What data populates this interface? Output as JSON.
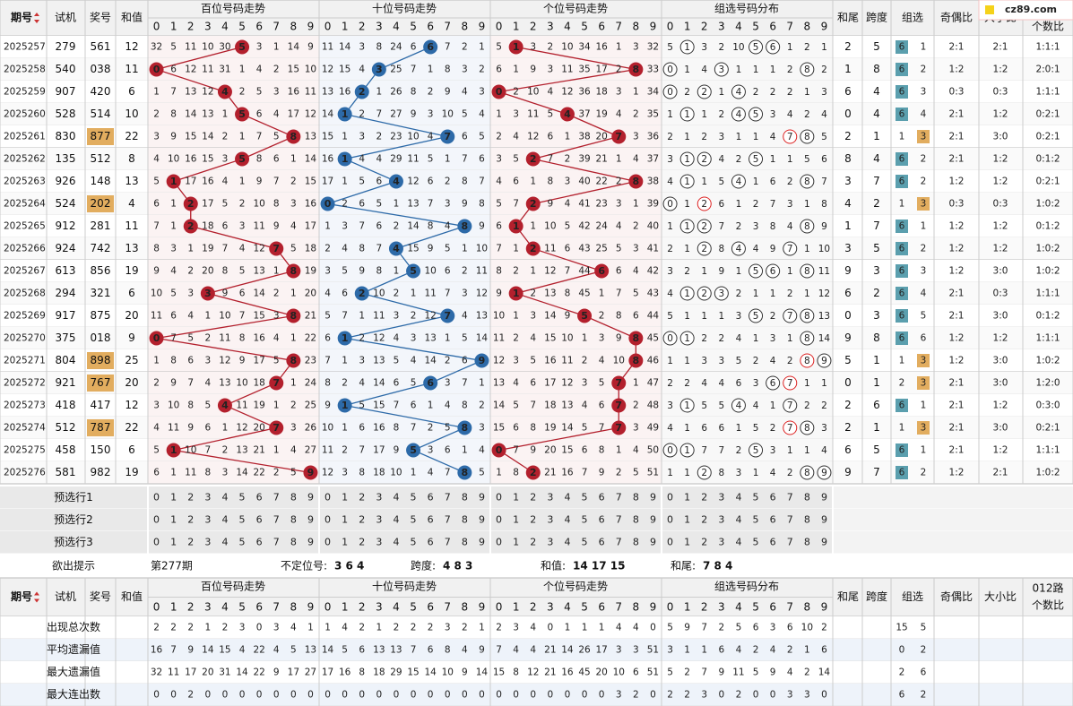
{
  "logo": "cz89.com",
  "header": {
    "period": "期号",
    "trial": "试机",
    "prize": "奖号",
    "sum": "和值",
    "hundreds": "百位号码走势",
    "tens": "十位号码走势",
    "units": "个位号码走势",
    "group": "组选号码分布",
    "tail": "和尾",
    "span": "跨度",
    "grp": "组选",
    "odd_even": "奇偶比",
    "big_small": "大小比",
    "route1": "012路",
    "route2": "个数比"
  },
  "digits": [
    0,
    1,
    2,
    3,
    4,
    5,
    6,
    7,
    8,
    9
  ],
  "rows": [
    {
      "period": "2025257",
      "trial": "279",
      "prize": "561",
      "sum": 12,
      "hundreds": [
        32,
        5,
        11,
        10,
        30,
        5,
        3,
        1,
        14,
        9
      ],
      "tens": [
        11,
        14,
        3,
        8,
        24,
        6,
        6,
        7,
        2,
        1
      ],
      "units": [
        5,
        1,
        3,
        2,
        10,
        34,
        16,
        1,
        3,
        32
      ],
      "group": [
        5,
        1,
        3,
        2,
        10,
        5,
        6,
        1,
        2,
        1
      ],
      "tail": 2,
      "span": 5,
      "g6": 6,
      "g3": 1,
      "odd_even": "2:1",
      "big_small": "2:1",
      "route": "1:1:1"
    },
    {
      "period": "2025258",
      "trial": "540",
      "prize": "038",
      "sum": 11,
      "hundreds": [
        0,
        6,
        12,
        11,
        31,
        1,
        4,
        2,
        15,
        10
      ],
      "tens": [
        12,
        15,
        4,
        3,
        25,
        7,
        1,
        8,
        3,
        2
      ],
      "units": [
        6,
        1,
        9,
        3,
        11,
        35,
        17,
        2,
        8,
        33
      ],
      "group": [
        0,
        1,
        4,
        3,
        1,
        1,
        1,
        2,
        8,
        2
      ],
      "tail": 1,
      "span": 8,
      "g6": 6,
      "g3": 2,
      "odd_even": "1:2",
      "big_small": "1:2",
      "route": "2:0:1"
    },
    {
      "period": "2025259",
      "trial": "907",
      "prize": "420",
      "sum": 6,
      "hundreds": [
        1,
        7,
        13,
        12,
        4,
        2,
        5,
        3,
        16,
        11
      ],
      "tens": [
        13,
        16,
        2,
        1,
        26,
        8,
        2,
        9,
        4,
        3
      ],
      "units": [
        0,
        2,
        10,
        4,
        12,
        36,
        18,
        3,
        1,
        34
      ],
      "group": [
        0,
        2,
        2,
        1,
        4,
        2,
        2,
        2,
        1,
        3
      ],
      "tail": 6,
      "span": 4,
      "g6": 6,
      "g3": 3,
      "odd_even": "0:3",
      "big_small": "0:3",
      "route": "1:1:1"
    },
    {
      "period": "2025260",
      "trial": "528",
      "prize": "514",
      "sum": 10,
      "hundreds": [
        2,
        8,
        14,
        13,
        1,
        5,
        6,
        4,
        17,
        12
      ],
      "tens": [
        14,
        1,
        2,
        7,
        27,
        9,
        3,
        10,
        5,
        4
      ],
      "units": [
        1,
        3,
        11,
        5,
        4,
        37,
        19,
        4,
        2,
        35
      ],
      "group": [
        1,
        1,
        1,
        2,
        4,
        5,
        3,
        4,
        2,
        4
      ],
      "tail": 0,
      "span": 4,
      "g6": 6,
      "g3": 4,
      "odd_even": "2:1",
      "big_small": "1:2",
      "route": "0:2:1"
    },
    {
      "period": "2025261",
      "trial": "830",
      "prize": "877",
      "sum": 22,
      "hundreds": [
        3,
        9,
        15,
        14,
        2,
        1,
        7,
        5,
        8,
        13
      ],
      "tens": [
        15,
        1,
        3,
        2,
        23,
        10,
        4,
        7,
        6,
        5
      ],
      "units": [
        2,
        4,
        12,
        6,
        1,
        38,
        20,
        7,
        3,
        36
      ],
      "group": [
        2,
        1,
        2,
        3,
        1,
        1,
        4,
        7,
        8,
        5
      ],
      "tail": 2,
      "span": 1,
      "g6": 1,
      "g3": 3,
      "odd_even": "2:1",
      "big_small": "3:0",
      "route": "0:2:1"
    },
    {
      "period": "2025262",
      "trial": "135",
      "prize": "512",
      "sum": 8,
      "hundreds": [
        4,
        10,
        16,
        15,
        3,
        5,
        8,
        6,
        1,
        14
      ],
      "tens": [
        16,
        1,
        4,
        4,
        29,
        11,
        5,
        1,
        7,
        6
      ],
      "units": [
        3,
        5,
        2,
        7,
        2,
        39,
        21,
        1,
        4,
        37
      ],
      "group": [
        3,
        1,
        2,
        4,
        2,
        5,
        1,
        1,
        5,
        6
      ],
      "tail": 8,
      "span": 4,
      "g6": 6,
      "g3": 2,
      "odd_even": "2:1",
      "big_small": "1:2",
      "route": "0:1:2"
    },
    {
      "period": "2025263",
      "trial": "926",
      "prize": "148",
      "sum": 13,
      "hundreds": [
        5,
        1,
        17,
        16,
        4,
        1,
        9,
        7,
        2,
        15
      ],
      "tens": [
        17,
        1,
        5,
        6,
        4,
        12,
        6,
        2,
        8,
        7
      ],
      "units": [
        4,
        6,
        1,
        8,
        3,
        40,
        22,
        2,
        8,
        38
      ],
      "group": [
        4,
        1,
        1,
        5,
        4,
        1,
        6,
        2,
        8,
        7
      ],
      "tail": 3,
      "span": 7,
      "g6": 6,
      "g3": 2,
      "odd_even": "1:2",
      "big_small": "1:2",
      "route": "0:2:1"
    },
    {
      "period": "2025264",
      "trial": "524",
      "prize": "202",
      "sum": 4,
      "hundreds": [
        6,
        1,
        2,
        17,
        5,
        2,
        10,
        8,
        3,
        16
      ],
      "tens": [
        0,
        2,
        6,
        5,
        1,
        13,
        7,
        3,
        9,
        8
      ],
      "units": [
        5,
        7,
        2,
        9,
        4,
        41,
        23,
        3,
        1,
        39
      ],
      "group": [
        0,
        1,
        2,
        6,
        1,
        2,
        7,
        3,
        1,
        8
      ],
      "tail": 4,
      "span": 2,
      "g6": 1,
      "g3": 3,
      "odd_even": "0:3",
      "big_small": "0:3",
      "route": "1:0:2"
    },
    {
      "period": "2025265",
      "trial": "912",
      "prize": "281",
      "sum": 11,
      "hundreds": [
        7,
        1,
        2,
        18,
        6,
        3,
        11,
        9,
        4,
        17
      ],
      "tens": [
        1,
        3,
        7,
        6,
        2,
        14,
        8,
        4,
        8,
        9
      ],
      "units": [
        6,
        1,
        1,
        10,
        5,
        42,
        24,
        4,
        2,
        40
      ],
      "group": [
        1,
        1,
        2,
        7,
        2,
        3,
        8,
        4,
        8,
        9
      ],
      "tail": 1,
      "span": 7,
      "g6": 6,
      "g3": 1,
      "odd_even": "1:2",
      "big_small": "1:2",
      "route": "0:1:2"
    },
    {
      "period": "2025266",
      "trial": "924",
      "prize": "742",
      "sum": 13,
      "hundreds": [
        8,
        3,
        1,
        19,
        7,
        4,
        12,
        7,
        5,
        18
      ],
      "tens": [
        2,
        4,
        8,
        7,
        4,
        15,
        9,
        5,
        1,
        10
      ],
      "units": [
        7,
        1,
        2,
        11,
        6,
        43,
        25,
        5,
        3,
        41
      ],
      "group": [
        2,
        1,
        2,
        8,
        4,
        4,
        9,
        7,
        1,
        10
      ],
      "tail": 3,
      "span": 5,
      "g6": 6,
      "g3": 2,
      "odd_even": "1:2",
      "big_small": "1:2",
      "route": "1:0:2"
    },
    {
      "period": "2025267",
      "trial": "613",
      "prize": "856",
      "sum": 19,
      "hundreds": [
        9,
        4,
        2,
        20,
        8,
        5,
        13,
        1,
        8,
        19
      ],
      "tens": [
        3,
        5,
        9,
        8,
        1,
        5,
        10,
        6,
        2,
        11
      ],
      "units": [
        8,
        2,
        1,
        12,
        7,
        44,
        6,
        6,
        4,
        42
      ],
      "group": [
        3,
        2,
        1,
        9,
        1,
        5,
        6,
        1,
        8,
        11
      ],
      "tail": 9,
      "span": 3,
      "g6": 6,
      "g3": 3,
      "odd_even": "1:2",
      "big_small": "3:0",
      "route": "1:0:2"
    },
    {
      "period": "2025268",
      "trial": "294",
      "prize": "321",
      "sum": 6,
      "hundreds": [
        10,
        5,
        3,
        3,
        9,
        6,
        14,
        2,
        1,
        20
      ],
      "tens": [
        4,
        6,
        2,
        10,
        2,
        1,
        11,
        7,
        3,
        12
      ],
      "units": [
        9,
        1,
        2,
        13,
        8,
        45,
        1,
        7,
        5,
        43
      ],
      "group": [
        4,
        1,
        2,
        3,
        2,
        1,
        1,
        2,
        1,
        12
      ],
      "tail": 6,
      "span": 2,
      "g6": 6,
      "g3": 4,
      "odd_even": "2:1",
      "big_small": "0:3",
      "route": "1:1:1"
    },
    {
      "period": "2025269",
      "trial": "917",
      "prize": "875",
      "sum": 20,
      "hundreds": [
        11,
        6,
        4,
        1,
        10,
        7,
        15,
        3,
        8,
        21
      ],
      "tens": [
        5,
        7,
        1,
        11,
        3,
        2,
        12,
        7,
        4,
        13
      ],
      "units": [
        10,
        1,
        3,
        14,
        9,
        5,
        2,
        8,
        6,
        44
      ],
      "group": [
        5,
        1,
        1,
        1,
        3,
        5,
        2,
        7,
        8,
        13
      ],
      "tail": 0,
      "span": 3,
      "g6": 6,
      "g3": 5,
      "odd_even": "2:1",
      "big_small": "3:0",
      "route": "0:1:2"
    },
    {
      "period": "2025270",
      "trial": "375",
      "prize": "018",
      "sum": 9,
      "hundreds": [
        0,
        7,
        5,
        2,
        11,
        8,
        16,
        4,
        1,
        22
      ],
      "tens": [
        6,
        1,
        2,
        12,
        4,
        3,
        13,
        1,
        5,
        14
      ],
      "units": [
        11,
        2,
        4,
        15,
        10,
        1,
        3,
        9,
        8,
        45
      ],
      "group": [
        0,
        1,
        2,
        2,
        4,
        1,
        3,
        1,
        8,
        14
      ],
      "tail": 9,
      "span": 8,
      "g6": 6,
      "g3": 6,
      "odd_even": "1:2",
      "big_small": "1:2",
      "route": "1:1:1"
    },
    {
      "period": "2025271",
      "trial": "804",
      "prize": "898",
      "sum": 25,
      "hundreds": [
        1,
        8,
        6,
        3,
        12,
        9,
        17,
        5,
        8,
        23
      ],
      "tens": [
        7,
        1,
        3,
        13,
        5,
        4,
        14,
        2,
        6,
        9
      ],
      "units": [
        12,
        3,
        5,
        16,
        11,
        2,
        4,
        10,
        8,
        46
      ],
      "group": [
        1,
        1,
        3,
        3,
        5,
        2,
        4,
        2,
        8,
        9
      ],
      "tail": 5,
      "span": 1,
      "g6": 1,
      "g3": 3,
      "odd_even": "1:2",
      "big_small": "3:0",
      "route": "1:0:2"
    },
    {
      "period": "2025272",
      "trial": "921",
      "prize": "767",
      "sum": 20,
      "hundreds": [
        2,
        9,
        7,
        4,
        13,
        10,
        18,
        7,
        1,
        24
      ],
      "tens": [
        8,
        2,
        4,
        14,
        6,
        5,
        6,
        3,
        7,
        1
      ],
      "units": [
        13,
        4,
        6,
        17,
        12,
        3,
        5,
        7,
        1,
        47
      ],
      "group": [
        2,
        2,
        4,
        4,
        6,
        3,
        6,
        7,
        1,
        1
      ],
      "tail": 0,
      "span": 1,
      "g6": 2,
      "g3": 3,
      "odd_even": "2:1",
      "big_small": "3:0",
      "route": "1:2:0"
    },
    {
      "period": "2025273",
      "trial": "418",
      "prize": "417",
      "sum": 12,
      "hundreds": [
        3,
        10,
        8,
        5,
        4,
        11,
        19,
        1,
        2,
        25
      ],
      "tens": [
        9,
        1,
        5,
        15,
        7,
        6,
        1,
        4,
        8,
        2
      ],
      "units": [
        14,
        5,
        7,
        18,
        13,
        4,
        6,
        7,
        2,
        48
      ],
      "group": [
        3,
        1,
        5,
        5,
        4,
        4,
        1,
        7,
        2,
        2
      ],
      "tail": 2,
      "span": 6,
      "g6": 6,
      "g3": 1,
      "odd_even": "2:1",
      "big_small": "1:2",
      "route": "0:3:0"
    },
    {
      "period": "2025274",
      "trial": "512",
      "prize": "787",
      "sum": 22,
      "hundreds": [
        4,
        11,
        9,
        6,
        1,
        12,
        20,
        7,
        3,
        26
      ],
      "tens": [
        10,
        1,
        6,
        16,
        8,
        7,
        2,
        5,
        8,
        3
      ],
      "units": [
        15,
        6,
        8,
        19,
        14,
        5,
        7,
        7,
        3,
        49
      ],
      "group": [
        4,
        1,
        6,
        6,
        1,
        5,
        2,
        7,
        8,
        3
      ],
      "tail": 2,
      "span": 1,
      "g6": 1,
      "g3": 3,
      "odd_even": "2:1",
      "big_small": "3:0",
      "route": "0:2:1"
    },
    {
      "period": "2025275",
      "trial": "458",
      "prize": "150",
      "sum": 6,
      "hundreds": [
        5,
        1,
        10,
        7,
        2,
        13,
        21,
        1,
        4,
        27
      ],
      "tens": [
        11,
        2,
        7,
        17,
        9,
        5,
        3,
        6,
        1,
        4
      ],
      "units": [
        0,
        7,
        9,
        20,
        15,
        6,
        8,
        1,
        4,
        50
      ],
      "group": [
        0,
        1,
        7,
        7,
        2,
        5,
        3,
        1,
        1,
        4
      ],
      "tail": 6,
      "span": 5,
      "g6": 6,
      "g3": 1,
      "odd_even": "2:1",
      "big_small": "1:2",
      "route": "1:1:1"
    },
    {
      "period": "2025276",
      "trial": "581",
      "prize": "982",
      "sum": 19,
      "hundreds": [
        6,
        1,
        11,
        8,
        3,
        14,
        22,
        2,
        5,
        9
      ],
      "tens": [
        12,
        3,
        8,
        18,
        10,
        1,
        4,
        7,
        8,
        5
      ],
      "units": [
        1,
        8,
        2,
        21,
        16,
        7,
        9,
        2,
        5,
        51
      ],
      "group": [
        1,
        1,
        2,
        8,
        3,
        1,
        4,
        2,
        8,
        9
      ],
      "tail": 9,
      "span": 7,
      "g6": 6,
      "g3": 2,
      "odd_even": "1:2",
      "big_small": "2:1",
      "route": "1:0:2"
    }
  ],
  "preselect": [
    "预选行1",
    "预选行2",
    "预选行3"
  ],
  "hint": {
    "label": "欲出提示",
    "issue": "第277期",
    "pos_label": "不定位号:",
    "pos": "3 6 4",
    "span_label": "跨度:",
    "span": "4 8 3",
    "sum_label": "和值:",
    "sum": "14 17 15",
    "tail_label": "和尾:",
    "tail": "7 8 4"
  },
  "stats": [
    {
      "label": "出现总次数",
      "hundreds": [
        2,
        2,
        2,
        1,
        2,
        3,
        0,
        3,
        4,
        1
      ],
      "tens": [
        1,
        4,
        2,
        1,
        2,
        2,
        2,
        3,
        2,
        1
      ],
      "units": [
        2,
        3,
        4,
        0,
        1,
        1,
        1,
        4,
        4,
        0
      ],
      "group": [
        5,
        9,
        7,
        2,
        5,
        6,
        3,
        6,
        10,
        2
      ],
      "grp": [
        15,
        5
      ]
    },
    {
      "label": "平均遗漏值",
      "hundreds": [
        16,
        7,
        9,
        14,
        15,
        4,
        22,
        4,
        5,
        13
      ],
      "tens": [
        14,
        5,
        6,
        13,
        13,
        7,
        6,
        8,
        4,
        9
      ],
      "units": [
        7,
        4,
        4,
        21,
        14,
        26,
        17,
        3,
        3,
        51
      ],
      "group": [
        3,
        1,
        1,
        6,
        4,
        2,
        4,
        2,
        1,
        6
      ],
      "grp": [
        0,
        2
      ]
    },
    {
      "label": "最大遗漏值",
      "hundreds": [
        32,
        11,
        17,
        20,
        31,
        14,
        22,
        9,
        17,
        27
      ],
      "tens": [
        17,
        16,
        8,
        18,
        29,
        15,
        14,
        10,
        9,
        14
      ],
      "units": [
        15,
        8,
        12,
        21,
        16,
        45,
        20,
        10,
        6,
        51
      ],
      "group": [
        5,
        2,
        7,
        9,
        11,
        5,
        9,
        4,
        2,
        14
      ],
      "grp": [
        2,
        6
      ]
    },
    {
      "label": "最大连出数",
      "hundreds": [
        0,
        0,
        2,
        0,
        0,
        0,
        0,
        0,
        0,
        0
      ],
      "tens": [
        0,
        0,
        0,
        0,
        0,
        0,
        0,
        0,
        0,
        0
      ],
      "units": [
        0,
        0,
        0,
        0,
        0,
        0,
        0,
        3,
        2,
        0
      ],
      "group": [
        2,
        2,
        3,
        0,
        2,
        0,
        0,
        3,
        3,
        0
      ],
      "grp": [
        6,
        2
      ]
    }
  ]
}
